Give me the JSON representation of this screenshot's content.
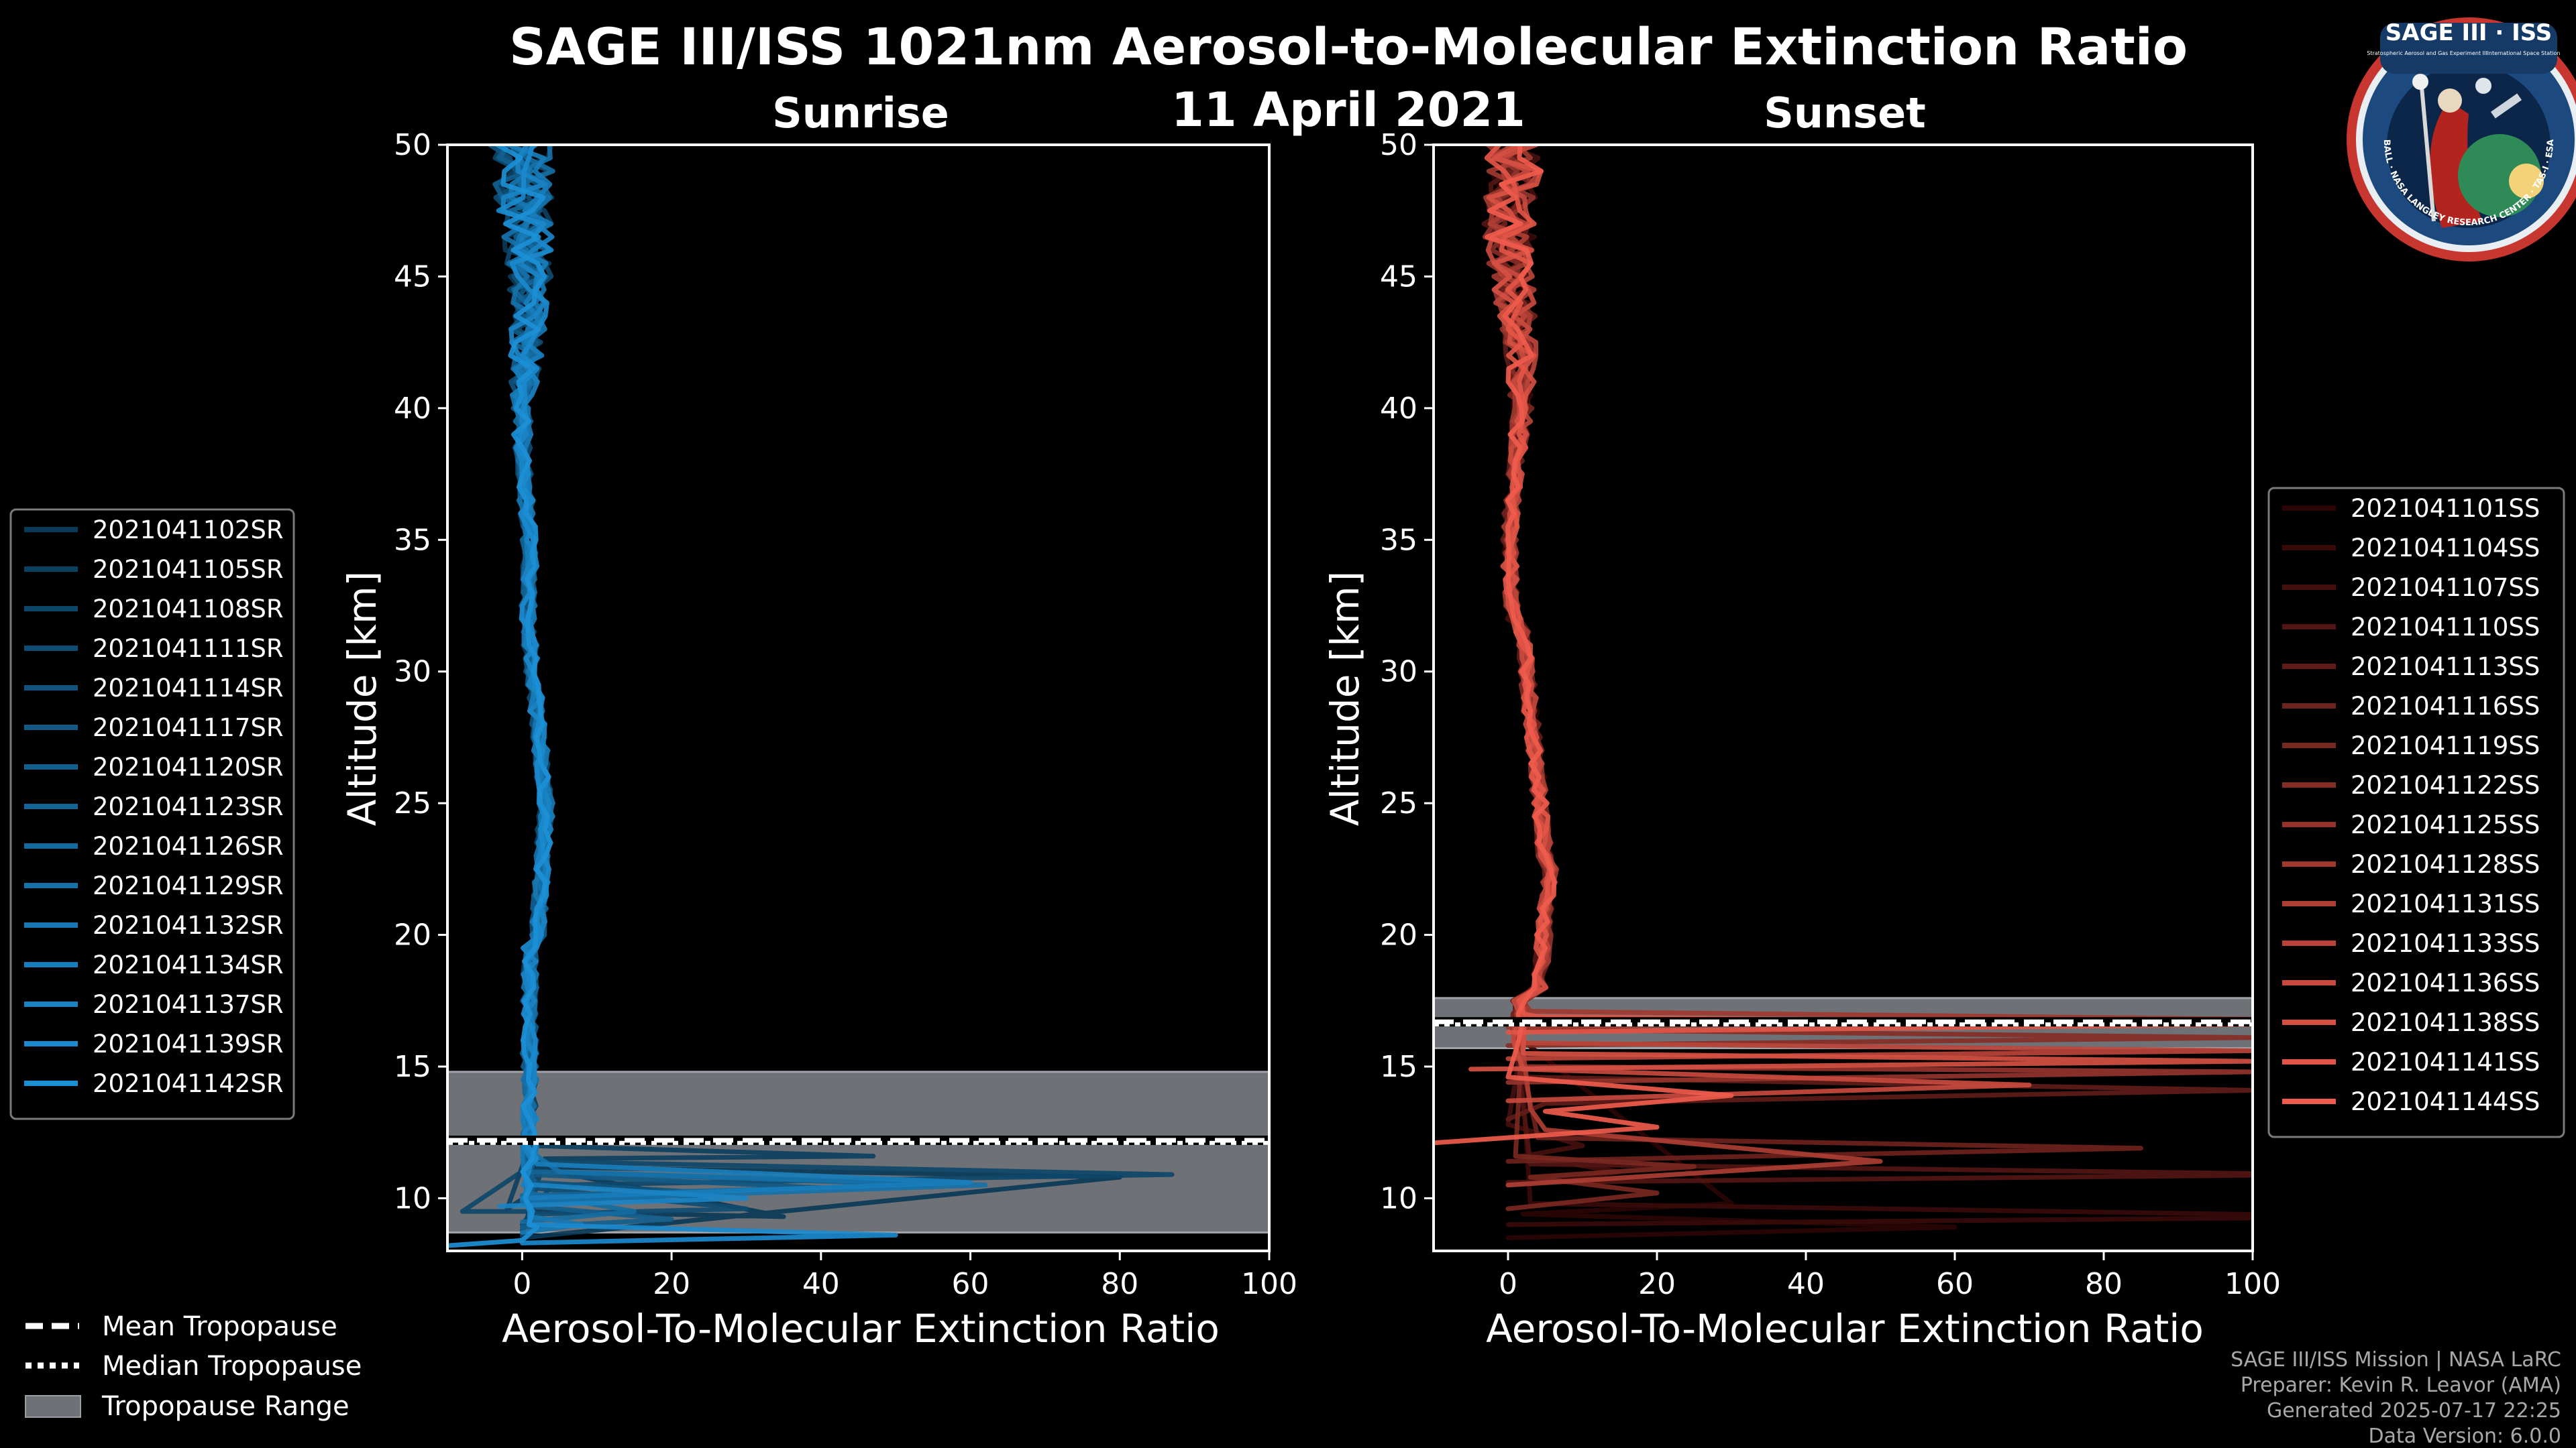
{
  "header": {
    "title": "SAGE III/ISS 1021nm Aerosol-to-Molecular Extinction Ratio",
    "date": "11 April 2021"
  },
  "logo": {
    "name": "SAGE III · ISS",
    "subtitle_left": "Stratospheric Aerosol and Gas Experiment III",
    "subtitle_right": "International Space Station",
    "ring_text": "BALL · NASA LANGLEY RESEARCH CENTER · TAS-I · ESA"
  },
  "footer": {
    "mission": "SAGE III/ISS Mission | NASA LaRC",
    "preparer": "Preparer: Kevin R. Leavor (AMA)",
    "generated": "Generated 2025-07-17 22:25",
    "data_version": "Data Version: 6.0.0"
  },
  "tropopause_legend": {
    "mean": "Mean Tropopause",
    "median": "Median Tropopause",
    "range": "Tropopause Range"
  },
  "chart_data": [
    {
      "type": "line",
      "panel": "sunrise",
      "title": "Sunrise",
      "xlabel": "Aerosol-To-Molecular Extinction Ratio",
      "ylabel": "Altitude [km]",
      "xlim": [
        -10,
        100
      ],
      "ylim": [
        8,
        50
      ],
      "xticks": [
        0,
        20,
        40,
        60,
        80,
        100
      ],
      "yticks": [
        10,
        15,
        20,
        25,
        30,
        35,
        40,
        45,
        50
      ],
      "tropopause": {
        "mean": 12.2,
        "median": 12.1,
        "range": [
          8.7,
          14.8
        ]
      },
      "legend_position": "left",
      "color_dark": "#0b3a57",
      "color_light": "#1c8fd6",
      "series": [
        {
          "name": "2021041102SR",
          "x": [
            0,
            80,
            1,
            35
          ],
          "y": [
            8.5,
            10.8,
            11.2,
            9.3
          ]
        },
        {
          "name": "2021041105SR",
          "x": [
            0,
            3,
            47,
            1,
            -2
          ],
          "y": [
            8.6,
            11.5,
            11.6,
            12.0,
            9.6
          ]
        },
        {
          "name": "2021041108SR",
          "x": [
            0,
            4,
            87,
            2,
            -8
          ],
          "y": [
            9.0,
            10.5,
            10.9,
            11.4,
            9.5
          ]
        },
        {
          "name": "2021041111SR",
          "x": [
            0,
            2,
            30,
            1
          ],
          "y": [
            8.8,
            9.4,
            9.6,
            10.4
          ]
        },
        {
          "name": "2021041114SR",
          "x": [
            0,
            25,
            2
          ],
          "y": [
            9.8,
            10.2,
            10.6
          ]
        },
        {
          "name": "2021041117SR",
          "x": [
            0,
            40,
            1
          ],
          "y": [
            10.0,
            10.4,
            10.9
          ]
        },
        {
          "name": "2021041120SR",
          "x": [
            0,
            20,
            1
          ],
          "y": [
            8.9,
            9.2,
            9.7
          ]
        },
        {
          "name": "2021041123SR",
          "x": [
            0,
            55,
            3
          ],
          "y": [
            10.1,
            10.5,
            11.0
          ]
        },
        {
          "name": "2021041126SR",
          "x": [
            0,
            15,
            1
          ],
          "y": [
            9.1,
            9.5,
            10.2
          ]
        },
        {
          "name": "2021041129SR",
          "x": [
            0,
            62,
            5,
            1
          ],
          "y": [
            9.9,
            10.5,
            11.0,
            11.8
          ]
        },
        {
          "name": "2021041132SR",
          "x": [
            0,
            8,
            1
          ],
          "y": [
            8.7,
            9.0,
            9.3
          ]
        },
        {
          "name": "2021041134SR",
          "x": [
            0,
            60,
            2
          ],
          "y": [
            10.0,
            10.6,
            11.3
          ]
        },
        {
          "name": "2021041137SR",
          "x": [
            -3,
            30,
            2
          ],
          "y": [
            9.7,
            10.0,
            10.5
          ]
        },
        {
          "name": "2021041139SR",
          "x": [
            0,
            50,
            1
          ],
          "y": [
            8.3,
            8.6,
            9.0
          ]
        },
        {
          "name": "2021041142SR",
          "x": [
            -10,
            0,
            2
          ],
          "y": [
            8.2,
            8.4,
            8.9
          ]
        }
      ]
    },
    {
      "type": "line",
      "panel": "sunset",
      "title": "Sunset",
      "xlabel": "Aerosol-To-Molecular Extinction Ratio",
      "ylabel": "Altitude [km]",
      "xlim": [
        -10,
        100
      ],
      "ylim": [
        8,
        50
      ],
      "xticks": [
        0,
        20,
        40,
        60,
        80,
        100
      ],
      "yticks": [
        10,
        15,
        20,
        25,
        30,
        35,
        40,
        45,
        50
      ],
      "tropopause": {
        "mean": 16.7,
        "median": 16.6,
        "range": [
          15.7,
          17.6
        ]
      },
      "legend_position": "right",
      "color_dark": "#2a0505",
      "color_light": "#ef5b4c",
      "series": [
        {
          "name": "2021041101SS",
          "x": [
            0,
            60,
            2,
            30
          ],
          "y": [
            8.5,
            8.9,
            9.4,
            9.8
          ]
        },
        {
          "name": "2021041104SS",
          "x": [
            0,
            120,
            3
          ],
          "y": [
            9.0,
            9.3,
            9.8
          ]
        },
        {
          "name": "2021041107SS",
          "x": [
            0,
            15,
            2,
            10,
            0
          ],
          "y": [
            10.5,
            11.0,
            11.6,
            12.0,
            12.8
          ]
        },
        {
          "name": "2021041110SS",
          "x": [
            0,
            110,
            3
          ],
          "y": [
            10.6,
            10.9,
            11.3
          ]
        },
        {
          "name": "2021041113SS",
          "x": [
            0,
            5,
            100,
            2
          ],
          "y": [
            13.0,
            13.6,
            14.1,
            14.6
          ]
        },
        {
          "name": "2021041116SS",
          "x": [
            0,
            85,
            4
          ],
          "y": [
            11.4,
            11.9,
            12.3
          ]
        },
        {
          "name": "2021041119SS",
          "x": [
            0,
            20,
            3,
            25,
            1
          ],
          "y": [
            9.6,
            10.2,
            10.8,
            11.2,
            11.6
          ]
        },
        {
          "name": "2021041122SS",
          "x": [
            0,
            100,
            5
          ],
          "y": [
            15.8,
            16.1,
            16.4
          ]
        },
        {
          "name": "2021041125SS",
          "x": [
            0,
            100,
            2
          ],
          "y": [
            14.4,
            14.8,
            15.0
          ]
        },
        {
          "name": "2021041128SS",
          "x": [
            0,
            100,
            3
          ],
          "y": [
            16.5,
            16.8,
            17.1
          ]
        },
        {
          "name": "2021041131SS",
          "x": [
            0,
            50,
            5,
            3
          ],
          "y": [
            10.5,
            11.4,
            12.6,
            13.4
          ]
        },
        {
          "name": "2021041133SS",
          "x": [
            0,
            100,
            1
          ],
          "y": [
            15.3,
            15.6,
            15.9
          ]
        },
        {
          "name": "2021041136SS",
          "x": [
            0,
            70,
            2
          ],
          "y": [
            13.7,
            14.3,
            14.9
          ]
        },
        {
          "name": "2021041138SS",
          "x": [
            -5,
            100,
            2
          ],
          "y": [
            14.9,
            15.2,
            15.5
          ]
        },
        {
          "name": "2021041141SS",
          "x": [
            0,
            100,
            4
          ],
          "y": [
            16.3,
            16.6,
            16.9
          ]
        },
        {
          "name": "2021041144SS",
          "x": [
            -10,
            20,
            5,
            30,
            0
          ],
          "y": [
            12.1,
            12.7,
            13.3,
            13.9,
            14.6
          ]
        }
      ]
    }
  ]
}
